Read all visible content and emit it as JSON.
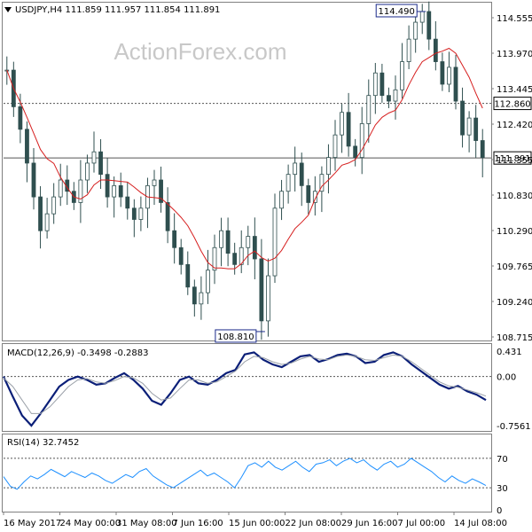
{
  "header": {
    "symbol_line": "USDJPY,H4  111.859 111.957 111.854 111.891",
    "menu_icon": "triangle-down-icon"
  },
  "watermark": "ActionForex.com",
  "chart_data": [
    {
      "type": "candlestick",
      "title": "USDJPY,H4  111.859 111.957 111.854 111.891",
      "ylim": [
        108.715,
        114.6
      ],
      "y_ticks": [
        "114.555",
        "113.970",
        "113.445",
        "112.420",
        "111.355",
        "110.830",
        "110.290",
        "109.765",
        "109.240",
        "108.715"
      ],
      "x_ticks": [
        "16 May 2017",
        "24 May 00:00",
        "31 May 08:00",
        "7 Jun 16:00",
        "15 Jun 00:00",
        "22 Jun 08:00",
        "29 Jun 16:00",
        "7 Jul 00:00",
        "14 Jul 08:00"
      ],
      "annotations": [
        {
          "text": "114.490",
          "value": 114.49
        },
        {
          "text": "108.810",
          "value": 108.81
        }
      ],
      "horizontal_lines": [
        {
          "label": "112.860",
          "value": 112.86,
          "style": "dotted"
        },
        {
          "label": "111.891",
          "value": 111.891,
          "style": "solid"
        }
      ],
      "price_path": [
        113.45,
        112.8,
        112.4,
        111.8,
        111.2,
        110.6,
        110.9,
        111.2,
        111.5,
        111.3,
        111.1,
        111.5,
        111.8,
        112.0,
        111.6,
        111.2,
        111.4,
        111.2,
        111.0,
        110.8,
        111.0,
        111.4,
        111.5,
        111.1,
        110.6,
        110.3,
        110.0,
        109.6,
        109.3,
        109.5,
        109.9,
        110.3,
        110.6,
        110.2,
        110.0,
        110.3,
        110.5,
        110.1,
        109.0,
        109.8,
        111.0,
        111.3,
        111.6,
        111.8,
        111.4,
        111.1,
        111.3,
        111.6,
        111.9,
        112.3,
        112.7,
        112.1,
        111.9,
        112.5,
        113.0,
        113.4,
        113.0,
        112.9,
        113.1,
        113.6,
        114.0,
        114.3,
        114.49,
        114.0,
        113.6,
        113.2,
        113.5,
        112.9,
        112.3,
        112.6,
        112.2,
        111.9
      ],
      "moving_average_color": "#d61f1f",
      "candle_color": "#2f4f4f"
    },
    {
      "type": "line",
      "title": "MACD(12,26,9) -0.3498 -0.2883",
      "ylim": [
        -0.7561,
        0.431
      ],
      "y_ticks": [
        "0.431",
        "0.00",
        "-0.7561"
      ],
      "series": [
        {
          "role": "macd",
          "color": "#0b1f78",
          "values": [
            0.0,
            -0.3,
            -0.58,
            -0.73,
            -0.55,
            -0.35,
            -0.15,
            -0.05,
            0.0,
            -0.05,
            -0.12,
            -0.1,
            -0.02,
            0.05,
            -0.05,
            -0.18,
            -0.36,
            -0.42,
            -0.25,
            -0.05,
            0.0,
            -0.1,
            -0.12,
            -0.05,
            0.05,
            0.1,
            0.33,
            0.36,
            0.25,
            0.18,
            0.14,
            0.22,
            0.3,
            0.32,
            0.22,
            0.26,
            0.32,
            0.34,
            0.3,
            0.2,
            0.22,
            0.32,
            0.36,
            0.3,
            0.18,
            0.08,
            -0.02,
            -0.12,
            -0.18,
            -0.14,
            -0.22,
            -0.27,
            -0.35
          ]
        },
        {
          "role": "signal",
          "color": "#9aa0a8",
          "values": [
            -0.02,
            -0.15,
            -0.35,
            -0.55,
            -0.55,
            -0.45,
            -0.3,
            -0.15,
            -0.05,
            -0.03,
            -0.08,
            -0.1,
            -0.06,
            0.0,
            -0.02,
            -0.1,
            -0.25,
            -0.35,
            -0.32,
            -0.18,
            -0.05,
            -0.05,
            -0.1,
            -0.08,
            0.0,
            0.08,
            0.22,
            0.3,
            0.28,
            0.22,
            0.18,
            0.2,
            0.26,
            0.3,
            0.26,
            0.25,
            0.3,
            0.32,
            0.3,
            0.25,
            0.24,
            0.28,
            0.32,
            0.3,
            0.22,
            0.12,
            0.02,
            -0.08,
            -0.14,
            -0.16,
            -0.2,
            -0.24,
            -0.29
          ]
        }
      ],
      "zero_line": 0
    },
    {
      "type": "line",
      "title": "RSI(14) 32.7452",
      "ylim": [
        0,
        100
      ],
      "y_ticks": [
        "70",
        "30",
        "0"
      ],
      "levels": [
        70,
        30
      ],
      "series": [
        {
          "role": "rsi",
          "color": "#1e90ff",
          "values": [
            45,
            32,
            28,
            38,
            46,
            42,
            48,
            55,
            50,
            45,
            52,
            48,
            44,
            50,
            46,
            40,
            36,
            42,
            48,
            44,
            52,
            56,
            46,
            40,
            34,
            30,
            36,
            42,
            48,
            54,
            46,
            50,
            44,
            38,
            30,
            44,
            60,
            64,
            58,
            66,
            58,
            54,
            60,
            66,
            58,
            52,
            62,
            64,
            68,
            60,
            66,
            70,
            64,
            68,
            60,
            54,
            62,
            66,
            58,
            62,
            70,
            64,
            58,
            52,
            44,
            38,
            46,
            40,
            36,
            42,
            38,
            33
          ]
        }
      ]
    }
  ]
}
